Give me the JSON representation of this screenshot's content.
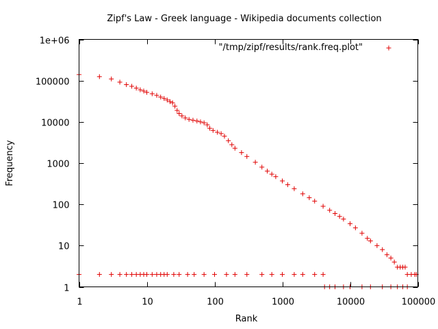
{
  "chart_data": {
    "type": "scatter",
    "title": "Zipf's Law - Greek language - Wikipedia documents collection",
    "xlabel": "Rank",
    "ylabel": "Frequency",
    "xscale": "log",
    "yscale": "log",
    "xlim": [
      1,
      100000
    ],
    "ylim": [
      1,
      1000000
    ],
    "x_ticks": [
      {
        "value": 1,
        "label": "1"
      },
      {
        "value": 10,
        "label": "10"
      },
      {
        "value": 100,
        "label": "100"
      },
      {
        "value": 1000,
        "label": "1000"
      },
      {
        "value": 10000,
        "label": "10000"
      },
      {
        "value": 100000,
        "label": "100000"
      }
    ],
    "y_ticks": [
      {
        "value": 1,
        "label": "1"
      },
      {
        "value": 10,
        "label": "10"
      },
      {
        "value": 100,
        "label": "100"
      },
      {
        "value": 1000,
        "label": "1000"
      },
      {
        "value": 10000,
        "label": "10000"
      },
      {
        "value": 100000,
        "label": "100000"
      },
      {
        "value": 1000000,
        "label": "1e+06"
      }
    ],
    "legend_position": "top-right",
    "grid": false,
    "marker": "+",
    "series_color": "#e00000",
    "series": [
      {
        "name": "\"/tmp/zipf/results/rank.freq.plot\"",
        "points": [
          [
            1,
            140000
          ],
          [
            2,
            125000
          ],
          [
            3,
            110000
          ],
          [
            4,
            92000
          ],
          [
            5,
            80000
          ],
          [
            6,
            73000
          ],
          [
            7,
            66000
          ],
          [
            8,
            60000
          ],
          [
            9,
            56000
          ],
          [
            10,
            52000
          ],
          [
            12,
            48000
          ],
          [
            14,
            44000
          ],
          [
            16,
            40000
          ],
          [
            18,
            37000
          ],
          [
            20,
            34000
          ],
          [
            22,
            31000
          ],
          [
            24,
            29000
          ],
          [
            26,
            24000
          ],
          [
            28,
            19000
          ],
          [
            30,
            16000
          ],
          [
            33,
            14000
          ],
          [
            37,
            12500
          ],
          [
            42,
            11500
          ],
          [
            48,
            11000
          ],
          [
            55,
            10500
          ],
          [
            62,
            10000
          ],
          [
            70,
            9500
          ],
          [
            78,
            8500
          ],
          [
            85,
            7000
          ],
          [
            95,
            6200
          ],
          [
            110,
            5600
          ],
          [
            125,
            5200
          ],
          [
            140,
            4500
          ],
          [
            160,
            3500
          ],
          [
            180,
            2800
          ],
          [
            200,
            2300
          ],
          [
            250,
            1800
          ],
          [
            300,
            1450
          ],
          [
            400,
            1050
          ],
          [
            500,
            800
          ],
          [
            600,
            640
          ],
          [
            700,
            540
          ],
          [
            800,
            470
          ],
          [
            1000,
            370
          ],
          [
            1200,
            300
          ],
          [
            1500,
            240
          ],
          [
            2000,
            180
          ],
          [
            2500,
            145
          ],
          [
            3000,
            120
          ],
          [
            4000,
            90
          ],
          [
            5000,
            72
          ],
          [
            6000,
            60
          ],
          [
            7000,
            51
          ],
          [
            8000,
            44
          ],
          [
            10000,
            34
          ],
          [
            12000,
            27
          ],
          [
            15000,
            20
          ],
          [
            18000,
            15
          ],
          [
            20000,
            13
          ],
          [
            25000,
            10
          ],
          [
            30000,
            8
          ],
          [
            35000,
            6
          ],
          [
            40000,
            5
          ],
          [
            45000,
            4
          ],
          [
            50000,
            3
          ],
          [
            55000,
            3
          ],
          [
            60000,
            3
          ],
          [
            65000,
            3
          ],
          [
            70000,
            2
          ],
          [
            80000,
            2
          ],
          [
            90000,
            2
          ],
          [
            95000,
            2
          ],
          [
            1,
            2
          ],
          [
            2,
            2
          ],
          [
            3,
            2
          ],
          [
            4,
            2
          ],
          [
            5,
            2
          ],
          [
            6,
            2
          ],
          [
            7,
            2
          ],
          [
            8,
            2
          ],
          [
            9,
            2
          ],
          [
            10,
            2
          ],
          [
            12,
            2
          ],
          [
            14,
            2
          ],
          [
            16,
            2
          ],
          [
            18,
            2
          ],
          [
            20,
            2
          ],
          [
            25,
            2
          ],
          [
            30,
            2
          ],
          [
            40,
            2
          ],
          [
            50,
            2
          ],
          [
            70,
            2
          ],
          [
            100,
            2
          ],
          [
            150,
            2
          ],
          [
            200,
            2
          ],
          [
            300,
            2
          ],
          [
            500,
            2
          ],
          [
            700,
            2
          ],
          [
            1000,
            2
          ],
          [
            1500,
            2
          ],
          [
            2000,
            2
          ],
          [
            3000,
            2
          ],
          [
            4000,
            2
          ],
          [
            4200,
            1
          ],
          [
            5000,
            1
          ],
          [
            6000,
            1
          ],
          [
            8000,
            1
          ],
          [
            10000,
            1
          ],
          [
            15000,
            1
          ],
          [
            20000,
            1
          ],
          [
            30000,
            1
          ],
          [
            40000,
            1
          ],
          [
            50000,
            1
          ],
          [
            60000,
            1
          ],
          [
            70000,
            1
          ]
        ]
      }
    ]
  }
}
